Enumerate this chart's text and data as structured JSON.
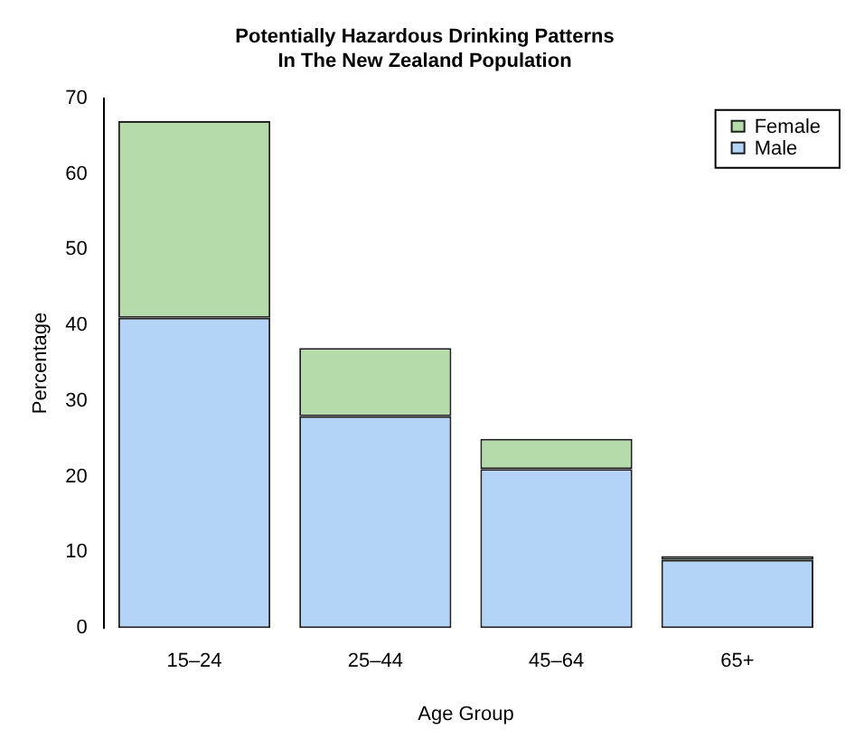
{
  "chart_data": {
    "type": "bar",
    "title": "Potentially Hazardous Drinking Patterns\nIn The New Zealand Population",
    "xlabel": "Age Group",
    "ylabel": "Percentage",
    "categories": [
      "15–24",
      "25–44",
      "45–64",
      "65+"
    ],
    "stacked": true,
    "series": [
      {
        "name": "Male",
        "color": "#b3d4f7",
        "values": [
          41,
          28,
          21,
          9
        ]
      },
      {
        "name": "Female",
        "color": "#b6dbab",
        "values": [
          26,
          9,
          4,
          0.5
        ]
      }
    ],
    "ylim": [
      0,
      70
    ],
    "yticks": [
      0,
      10,
      20,
      30,
      40,
      50,
      60,
      70
    ],
    "grid": false,
    "legend": "top right"
  }
}
